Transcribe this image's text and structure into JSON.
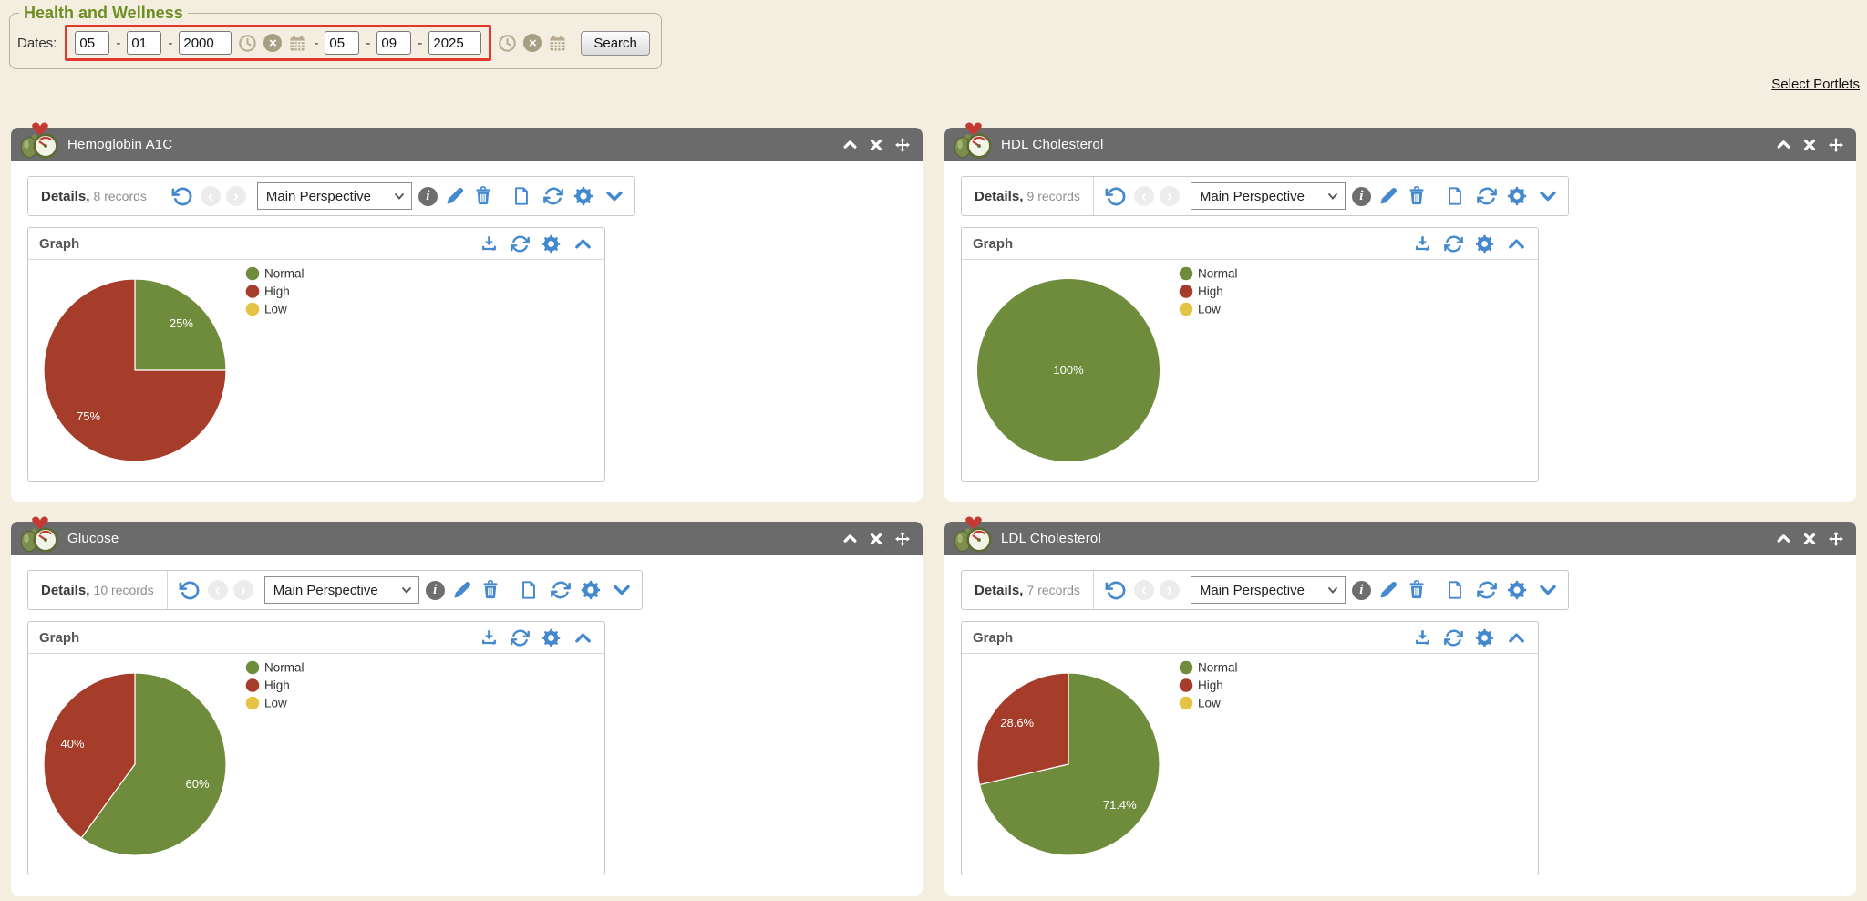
{
  "header": {
    "legend": "Health and Wellness",
    "dates_label": "Dates:",
    "date_from": {
      "month": "05",
      "day": "01",
      "year": "2000"
    },
    "date_to": {
      "month": "05",
      "day": "09",
      "year": "2025"
    },
    "dash": "-",
    "range_separator": "-",
    "search_label": "Search",
    "select_portlets_label": "Select Portlets"
  },
  "labels": {
    "details": "Details,",
    "perspective": "Main Perspective",
    "graph": "Graph"
  },
  "icons": {
    "prev_glyph": "‹",
    "next_glyph": "›",
    "info_glyph": "i",
    "clear_glyph": "×",
    "toolbar": [
      "undo",
      "previous",
      "next",
      "info",
      "edit",
      "delete",
      "document",
      "refresh",
      "settings",
      "collapse"
    ],
    "graph_header": [
      "download",
      "refresh",
      "settings",
      "collapse"
    ],
    "portlet_header": [
      "collapse",
      "close",
      "move"
    ],
    "date_group": [
      "time",
      "clear",
      "calendar"
    ]
  },
  "colors": {
    "page_bg": "#f3eee0",
    "portlet_header": "#6b6b6b",
    "accent_blue": "#4489cd",
    "title_green": "#6d8e23",
    "red_box": "#e1382d",
    "tan_icon": "#b7ac92",
    "normal": "#6e8c3b",
    "high": "#a63c2a",
    "low": "#e5c445"
  },
  "portlets": [
    {
      "title": "Hemoglobin A1C",
      "records": "8 records"
    },
    {
      "title": "HDL Cholesterol",
      "records": "9 records"
    },
    {
      "title": "Glucose",
      "records": "10 records"
    },
    {
      "title": "LDL Cholesterol",
      "records": "7 records"
    }
  ],
  "chart_data": [
    {
      "type": "pie",
      "title": "Hemoglobin A1C",
      "categories": [
        "Normal",
        "High",
        "Low"
      ],
      "values": [
        25,
        75,
        0
      ],
      "labels": [
        "25%",
        "75%",
        ""
      ],
      "colors": [
        "#6e8c3b",
        "#a63c2a",
        "#e5c445"
      ],
      "legend_position": "right"
    },
    {
      "type": "pie",
      "title": "HDL Cholesterol",
      "categories": [
        "Normal",
        "High",
        "Low"
      ],
      "values": [
        100,
        0,
        0
      ],
      "labels": [
        "100%",
        "",
        ""
      ],
      "colors": [
        "#6e8c3b",
        "#a63c2a",
        "#e5c445"
      ],
      "legend_position": "right"
    },
    {
      "type": "pie",
      "title": "Glucose",
      "categories": [
        "Normal",
        "High",
        "Low"
      ],
      "values": [
        60,
        40,
        0
      ],
      "labels": [
        "60%",
        "40%",
        ""
      ],
      "colors": [
        "#6e8c3b",
        "#a63c2a",
        "#e5c445"
      ],
      "legend_position": "right"
    },
    {
      "type": "pie",
      "title": "LDL Cholesterol",
      "categories": [
        "Normal",
        "High",
        "Low"
      ],
      "values": [
        71.4,
        28.6,
        0
      ],
      "labels": [
        "71.4%",
        "28.6%",
        ""
      ],
      "colors": [
        "#6e8c3b",
        "#a63c2a",
        "#e5c445"
      ],
      "legend_position": "right"
    }
  ]
}
